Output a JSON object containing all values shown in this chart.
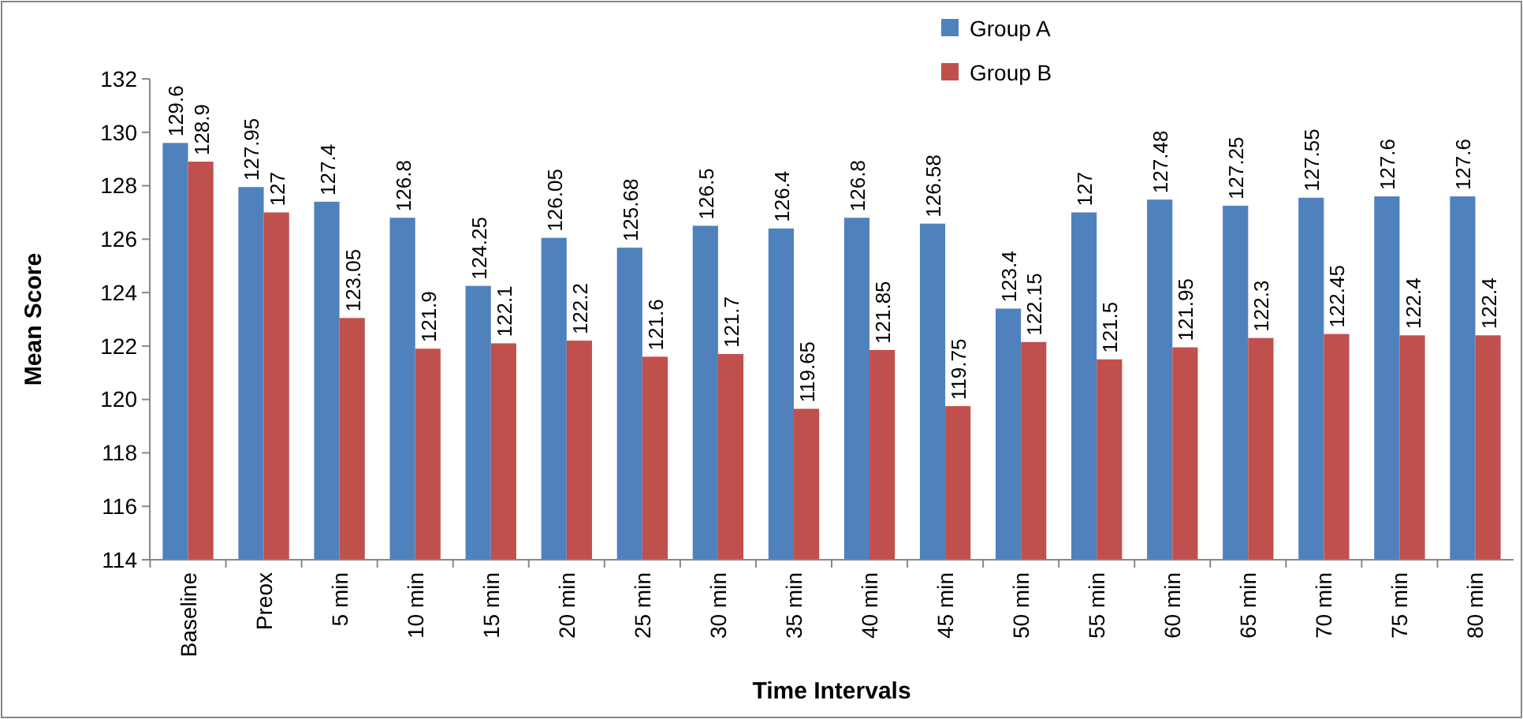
{
  "chart_data": {
    "type": "bar",
    "xlabel": "Time Intervals",
    "ylabel": "Mean Score",
    "categories": [
      "Baseline",
      "Preox",
      "5 min",
      "10 min",
      "15 min",
      "20 min",
      "25 min",
      "30 min",
      "35 min",
      "40 min",
      "45 min",
      "50 min",
      "55 min",
      "60 min",
      "65 min",
      "70 min",
      "75 min",
      "80 min"
    ],
    "series": [
      {
        "name": "Group A",
        "color": "#4f81bd",
        "values": [
          129.6,
          127.95,
          127.4,
          126.8,
          124.25,
          126.05,
          125.68,
          126.5,
          126.4,
          126.8,
          126.58,
          123.4,
          127,
          127.48,
          127.25,
          127.55,
          127.6,
          127.6
        ]
      },
      {
        "name": "Group B",
        "color": "#c0504d",
        "values": [
          128.9,
          127,
          123.05,
          121.9,
          122.1,
          122.2,
          121.6,
          121.7,
          119.65,
          121.85,
          119.75,
          122.15,
          121.5,
          121.95,
          122.3,
          122.45,
          122.4,
          122.4
        ]
      }
    ],
    "ylim": [
      114,
      132
    ],
    "yticks": [
      114,
      116,
      118,
      120,
      122,
      124,
      126,
      128,
      130,
      132
    ],
    "data_labels": true,
    "legend": "top",
    "grid": false
  }
}
